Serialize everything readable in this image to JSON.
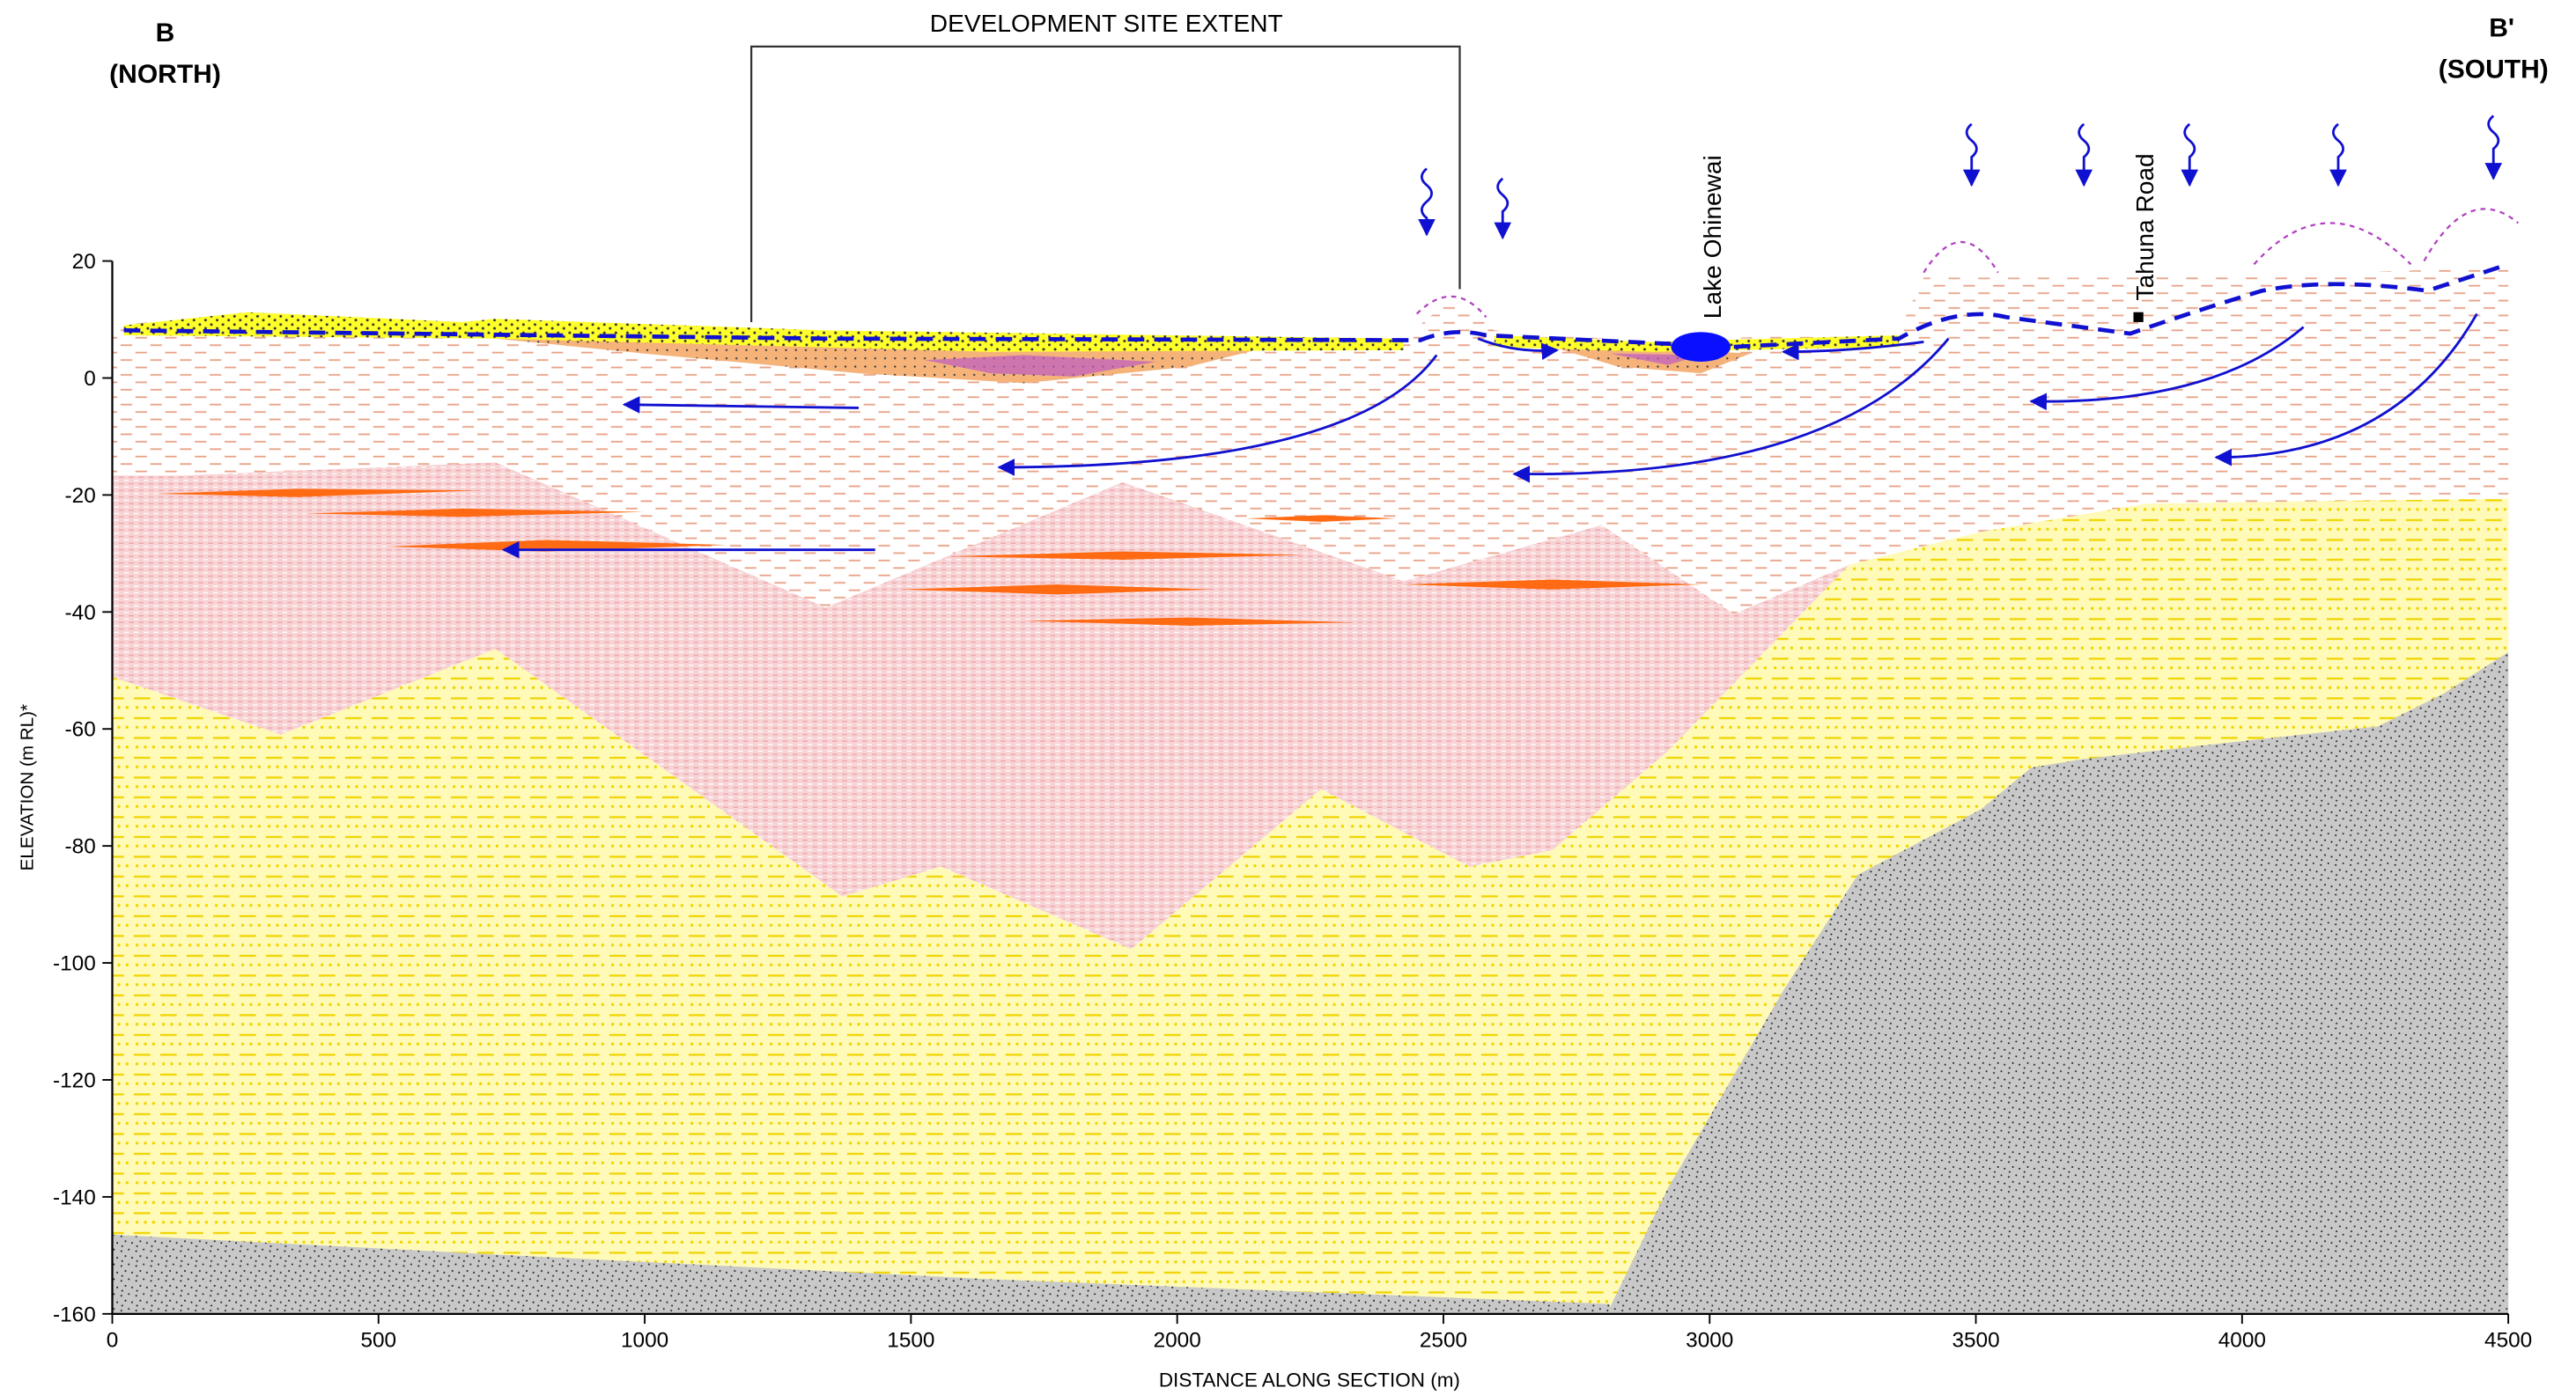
{
  "axes": {
    "xlabel": "DISTANCE ALONG SECTION (m)",
    "ylabel": "ELEVATION (m RL)*",
    "xlim": [
      0,
      4500
    ],
    "ylim": [
      -160,
      20
    ],
    "xticks": [
      0,
      500,
      1000,
      1500,
      2000,
      2500,
      3000,
      3500,
      4000,
      4500
    ],
    "yticks": [
      -160,
      -140,
      -120,
      -100,
      -80,
      -60,
      -40,
      -20,
      0,
      20
    ]
  },
  "labels": {
    "section_start": "B",
    "section_start_direction": "(NORTH)",
    "section_end": "B'",
    "section_end_direction": "(SOUTH)",
    "site_extent": "DEVELOPMENT SITE EXTENT",
    "lake": "Lake Ohinewai",
    "road": "Tahuna Road"
  }
}
